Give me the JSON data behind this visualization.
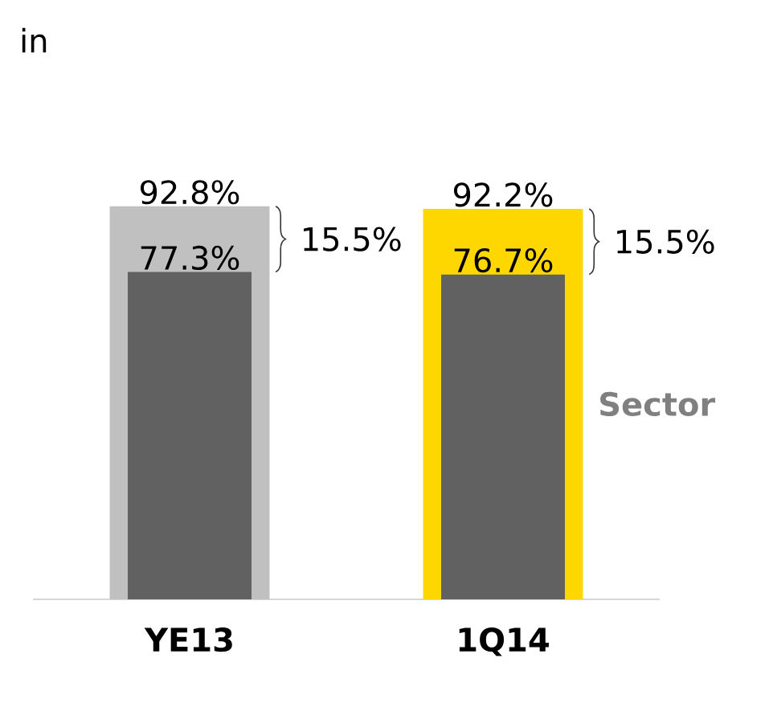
{
  "chart_data": {
    "type": "bar",
    "title": "in",
    "categories": [
      "YE13",
      "1Q14"
    ],
    "series": [
      {
        "name": "Sector",
        "colors": [
          "#c0c0c0",
          "#ffd700"
        ],
        "values": [
          92.8,
          92.2
        ],
        "value_labels": [
          "92.8%",
          "92.2%"
        ]
      },
      {
        "color": "#616161",
        "values": [
          77.3,
          76.7
        ],
        "value_labels": [
          "77.3%",
          "76.7%"
        ]
      }
    ],
    "annotations": [
      "15.5%",
      "15.5%"
    ]
  }
}
